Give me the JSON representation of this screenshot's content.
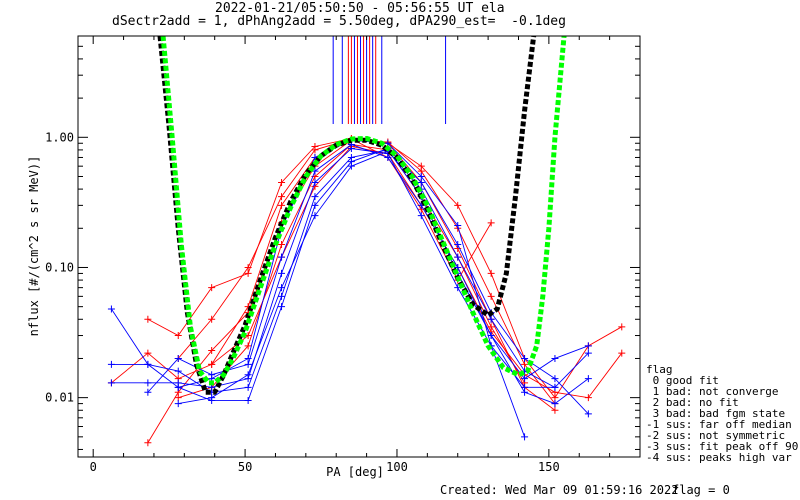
{
  "title_line1": "2022-01-21/05:50:50 - 05:56:55 UT ela",
  "title_line2": "dSectr2add = 1, dPhAng2add = 5.50deg, dPA290_est=  -0.1deg",
  "footer_created": "Created: Wed Mar 09 01:59:16 2022",
  "footer_flag": "flag = 0",
  "legend": {
    "title": "flag",
    "entries": [
      " 0 good fit",
      " 1 bad: not converge",
      " 2 bad: no fit",
      " 3 bad: bad fgm state",
      "-1 sus: far off median",
      "-2 sus: not symmetric",
      "-3 sus: fit peak off 90",
      "-4 sus: peaks high var"
    ]
  },
  "colors": {
    "red": "#ff0000",
    "blue": "#0000ff",
    "black_fit": "#000000",
    "green_fit": "#00ff00"
  },
  "chart_data": {
    "type": "line",
    "xlabel": "PA [deg]",
    "ylabel": "nflux [#/(cm^2 s sr MeV)]",
    "xlim": [
      -5,
      180
    ],
    "ylim": [
      0.0035,
      6
    ],
    "yscale": "log",
    "x_ticks": [
      0,
      50,
      100,
      150
    ],
    "x_tick_labels": [
      "0",
      "50",
      "100",
      "150"
    ],
    "y_ticks": [
      0.01,
      0.1,
      1.0
    ],
    "y_tick_labels": [
      "0.01",
      "0.10",
      "1.00"
    ],
    "series": [
      {
        "color": "red",
        "x": [
          6,
          18,
          28,
          39,
          51,
          62,
          73,
          85,
          97,
          108,
          120,
          131,
          142,
          152,
          163,
          174
        ],
        "y": [
          0.013,
          0.022,
          0.014,
          0.018,
          0.03,
          0.12,
          0.42,
          0.85,
          0.75,
          0.3,
          0.1,
          0.032,
          0.015,
          0.011,
          0.01,
          0.022
        ]
      },
      {
        "color": "red",
        "x": [
          18,
          28,
          39,
          51,
          62,
          73,
          85,
          97,
          108,
          120,
          131,
          142,
          152
        ],
        "y": [
          0.0045,
          0.011,
          0.023,
          0.045,
          0.22,
          0.6,
          0.95,
          0.9,
          0.45,
          0.14,
          0.04,
          0.012,
          0.008
        ]
      },
      {
        "color": "red",
        "x": [
          18,
          28,
          39,
          51,
          62,
          73,
          85,
          97,
          108,
          120,
          131,
          142,
          152,
          163,
          174
        ],
        "y": [
          0.04,
          0.03,
          0.07,
          0.09,
          0.45,
          0.85,
          0.98,
          0.9,
          0.6,
          0.3,
          0.09,
          0.02,
          0.01,
          0.025,
          0.035
        ]
      },
      {
        "color": "red",
        "x": [
          28,
          39,
          51,
          62,
          73,
          85,
          97,
          108,
          120,
          131,
          142
        ],
        "y": [
          0.01,
          0.012,
          0.025,
          0.15,
          0.5,
          0.88,
          0.8,
          0.35,
          0.12,
          0.035,
          0.013
        ]
      },
      {
        "color": "red",
        "x": [
          39,
          51,
          62,
          73,
          85,
          97,
          108,
          120,
          131,
          142,
          152
        ],
        "y": [
          0.018,
          0.05,
          0.3,
          0.7,
          0.95,
          0.92,
          0.55,
          0.2,
          0.06,
          0.018,
          0.009
        ]
      },
      {
        "color": "red",
        "x": [
          28,
          39,
          51,
          62,
          73,
          85,
          97,
          108,
          120,
          131
        ],
        "y": [
          0.02,
          0.04,
          0.1,
          0.35,
          0.8,
          0.97,
          0.7,
          0.28,
          0.08,
          0.22
        ]
      },
      {
        "color": "blue",
        "x": [
          6,
          18,
          28,
          39,
          51,
          62,
          73,
          85,
          97,
          108,
          120,
          131,
          142,
          152,
          163
        ],
        "y": [
          0.013,
          0.013,
          0.013,
          0.012,
          0.014,
          0.09,
          0.45,
          0.82,
          0.75,
          0.25,
          0.07,
          0.025,
          0.012,
          0.012,
          0.022
        ]
      },
      {
        "color": "blue",
        "x": [
          6,
          18,
          28,
          39,
          51,
          62,
          73,
          85,
          97,
          108,
          120,
          131,
          142,
          152,
          163
        ],
        "y": [
          0.018,
          0.018,
          0.016,
          0.011,
          0.012,
          0.06,
          0.35,
          0.7,
          0.8,
          0.35,
          0.09,
          0.03,
          0.014,
          0.02,
          0.025
        ]
      },
      {
        "color": "blue",
        "x": [
          6,
          18,
          28,
          39,
          51,
          62,
          73,
          85,
          97,
          108,
          120,
          131,
          142,
          152,
          163
        ],
        "y": [
          0.048,
          0.018,
          0.012,
          0.0095,
          0.0095,
          0.05,
          0.3,
          0.65,
          0.82,
          0.45,
          0.15,
          0.045,
          0.02,
          0.014,
          0.0075
        ]
      },
      {
        "color": "blue",
        "x": [
          18,
          28,
          39,
          51,
          62,
          73,
          85,
          97,
          108,
          120,
          131,
          142,
          152,
          163
        ],
        "y": [
          0.011,
          0.02,
          0.015,
          0.018,
          0.12,
          0.55,
          0.88,
          0.7,
          0.3,
          0.1,
          0.03,
          0.011,
          0.009,
          0.014
        ]
      },
      {
        "color": "blue",
        "x": [
          28,
          39,
          51,
          62,
          73,
          85,
          97,
          108,
          120,
          131,
          142
        ],
        "y": [
          0.012,
          0.014,
          0.02,
          0.2,
          0.7,
          0.95,
          0.9,
          0.5,
          0.21,
          0.025,
          0.005
        ]
      },
      {
        "color": "blue",
        "x": [
          28,
          39,
          51,
          62,
          73,
          85,
          97,
          108,
          120,
          131,
          142,
          152
        ],
        "y": [
          0.009,
          0.01,
          0.015,
          0.07,
          0.25,
          0.6,
          0.78,
          0.4,
          0.12,
          0.04,
          0.016,
          0.012
        ]
      }
    ],
    "fits": [
      {
        "color": "black_fit",
        "x": [
          22,
          25,
          28,
          31,
          34,
          37,
          40,
          43,
          46,
          50,
          55,
          60,
          65,
          70,
          75,
          80,
          85,
          90,
          95,
          100,
          105,
          110,
          115,
          120,
          125,
          130,
          133,
          136,
          139,
          142,
          145
        ],
        "y": [
          6,
          1.2,
          0.2,
          0.045,
          0.018,
          0.011,
          0.011,
          0.015,
          0.022,
          0.036,
          0.08,
          0.17,
          0.32,
          0.52,
          0.72,
          0.87,
          0.95,
          0.95,
          0.87,
          0.7,
          0.48,
          0.28,
          0.15,
          0.083,
          0.052,
          0.043,
          0.048,
          0.09,
          0.35,
          1.6,
          6
        ]
      },
      {
        "color": "green_fit",
        "x": [
          23,
          26,
          29,
          32,
          35,
          38,
          40,
          43,
          46,
          50,
          55,
          60,
          65,
          70,
          75,
          80,
          85,
          90,
          95,
          100,
          105,
          110,
          115,
          120,
          125,
          130,
          135,
          140,
          143,
          146,
          148,
          150,
          152,
          155
        ],
        "y": [
          6,
          1.0,
          0.15,
          0.035,
          0.016,
          0.013,
          0.013,
          0.015,
          0.02,
          0.032,
          0.07,
          0.15,
          0.29,
          0.5,
          0.72,
          0.88,
          0.97,
          0.98,
          0.9,
          0.72,
          0.5,
          0.3,
          0.16,
          0.085,
          0.045,
          0.025,
          0.017,
          0.015,
          0.016,
          0.025,
          0.06,
          0.2,
          1.0,
          6
        ]
      }
    ],
    "top_markers": [
      {
        "x": 79,
        "color": "blue"
      },
      {
        "x": 82,
        "color": "blue"
      },
      {
        "x": 84,
        "color": "red"
      },
      {
        "x": 85,
        "color": "red"
      },
      {
        "x": 86,
        "color": "blue"
      },
      {
        "x": 87,
        "color": "red"
      },
      {
        "x": 88,
        "color": "blue"
      },
      {
        "x": 89,
        "color": "red"
      },
      {
        "x": 90,
        "color": "blue"
      },
      {
        "x": 91,
        "color": "red"
      },
      {
        "x": 92,
        "color": "blue"
      },
      {
        "x": 93,
        "color": "red"
      },
      {
        "x": 95,
        "color": "blue"
      },
      {
        "x": 116,
        "color": "blue"
      }
    ]
  }
}
